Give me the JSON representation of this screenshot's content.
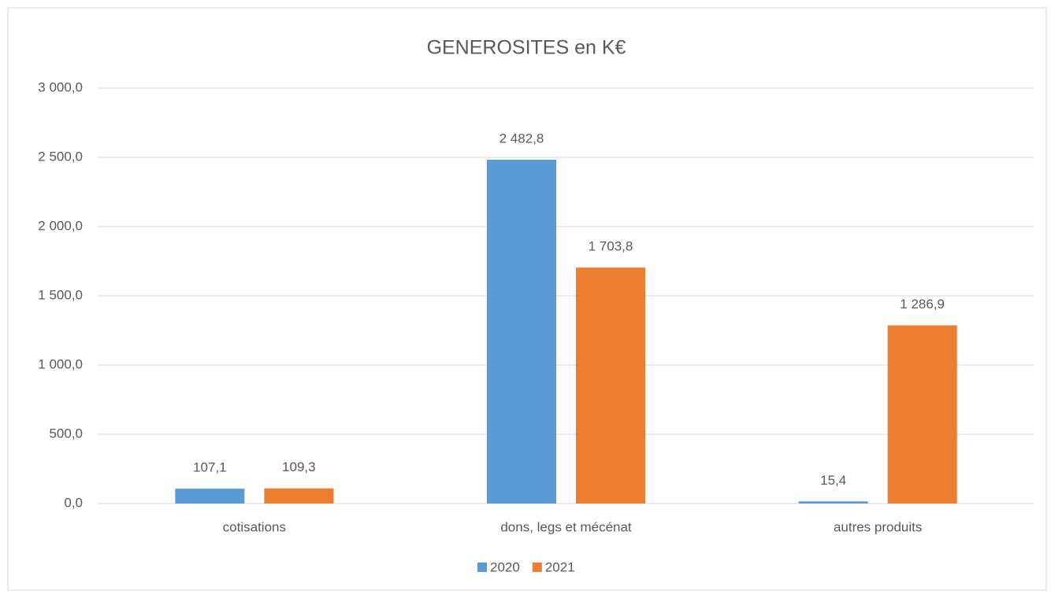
{
  "chart_data": {
    "type": "bar",
    "title": "GENEROSITES en K€",
    "categories": [
      "cotisations",
      "dons, legs et mécénat",
      "autres produits"
    ],
    "series": [
      {
        "name": "2020",
        "color": "#5b9bd5",
        "values": [
          107.1,
          2482.8,
          15.4
        ],
        "value_labels": [
          "107,1",
          "2 482,8",
          "15,4"
        ]
      },
      {
        "name": "2021",
        "color": "#ed7d31",
        "values": [
          109.3,
          1703.8,
          1286.9
        ],
        "value_labels": [
          "109,3",
          "1 703,8",
          "1 286,9"
        ]
      }
    ],
    "ylim": [
      0,
      3000
    ],
    "yticks": [
      {
        "value": 0,
        "label": "0,0"
      },
      {
        "value": 500,
        "label": "500,0"
      },
      {
        "value": 1000,
        "label": "1 000,0"
      },
      {
        "value": 1500,
        "label": "1 500,0"
      },
      {
        "value": 2000,
        "label": "2 000,0"
      },
      {
        "value": 2500,
        "label": "2 500,0"
      },
      {
        "value": 3000,
        "label": "3 000,0"
      }
    ],
    "grid": true,
    "legend": "bottom"
  }
}
